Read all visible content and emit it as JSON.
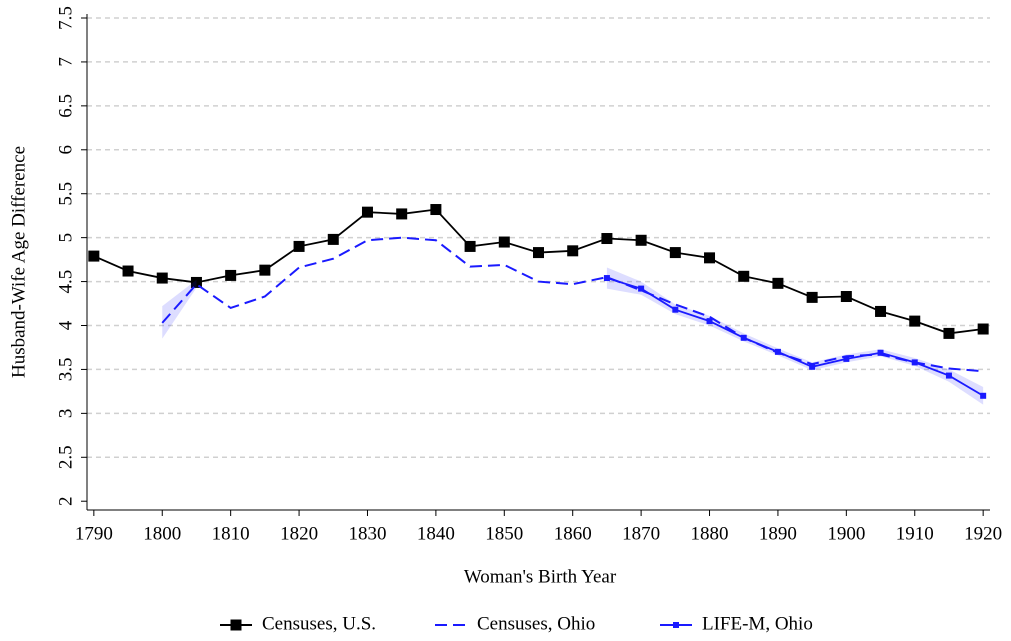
{
  "chart_data": {
    "type": "line",
    "xlabel": "Woman's Birth Year",
    "ylabel": "Husband-Wife Age Difference",
    "x": [
      1790,
      1795,
      1800,
      1805,
      1810,
      1815,
      1820,
      1825,
      1830,
      1835,
      1840,
      1845,
      1850,
      1855,
      1860,
      1865,
      1870,
      1875,
      1880,
      1885,
      1890,
      1895,
      1900,
      1905,
      1910,
      1915,
      1920
    ],
    "xlim": [
      1789,
      1921
    ],
    "xticks": [
      1790,
      1800,
      1810,
      1820,
      1830,
      1840,
      1850,
      1860,
      1870,
      1880,
      1890,
      1900,
      1910,
      1920
    ],
    "ylim": [
      1.9,
      7.5
    ],
    "yticks": [
      2,
      2.5,
      3,
      3.5,
      4,
      4.5,
      5,
      5.5,
      6,
      6.5,
      7,
      7.5
    ],
    "grid": true,
    "legend": "bottom",
    "series": [
      {
        "name": "Censuses, U.S.",
        "color": "#000000",
        "style": "solid-square",
        "values": [
          4.79,
          4.62,
          4.54,
          4.49,
          4.57,
          4.63,
          4.9,
          4.98,
          5.29,
          5.27,
          5.32,
          4.9,
          4.95,
          4.83,
          4.85,
          4.99,
          4.97,
          4.83,
          4.77,
          4.56,
          4.48,
          4.32,
          4.33,
          4.16,
          4.05,
          3.91,
          3.96
        ]
      },
      {
        "name": "Censuses, Ohio",
        "color": "#1a1aff",
        "style": "dashed",
        "values": [
          null,
          null,
          4.03,
          4.47,
          4.2,
          4.33,
          4.66,
          4.76,
          4.97,
          5.0,
          4.97,
          4.67,
          4.69,
          4.5,
          4.47,
          4.55,
          4.4,
          4.24,
          4.1,
          3.86,
          3.69,
          3.56,
          3.65,
          3.67,
          3.58,
          3.51,
          3.48
        ],
        "lower": [
          null,
          null,
          3.85,
          4.43,
          null,
          null,
          null,
          null,
          null,
          null,
          null,
          null,
          null,
          null,
          null,
          null,
          null,
          null,
          null,
          null,
          null,
          null,
          null,
          null,
          null,
          null,
          null
        ],
        "upper": [
          null,
          null,
          4.22,
          4.52,
          null,
          null,
          null,
          null,
          null,
          null,
          null,
          null,
          null,
          null,
          null,
          null,
          null,
          null,
          null,
          null,
          null,
          null,
          null,
          null,
          null,
          null,
          null
        ]
      },
      {
        "name": "LIFE-M, Ohio",
        "color": "#1a1aff",
        "style": "solid-small-square",
        "values": [
          null,
          null,
          null,
          null,
          null,
          null,
          null,
          null,
          null,
          null,
          null,
          null,
          null,
          null,
          null,
          4.54,
          4.42,
          4.18,
          4.05,
          3.86,
          3.7,
          3.53,
          3.62,
          3.69,
          3.58,
          3.43,
          3.2
        ],
        "lower": [
          null,
          null,
          null,
          null,
          null,
          null,
          null,
          null,
          null,
          null,
          null,
          null,
          null,
          null,
          null,
          4.42,
          4.35,
          4.13,
          4.0,
          3.82,
          3.66,
          3.49,
          3.58,
          3.65,
          3.54,
          3.36,
          3.1
        ],
        "upper": [
          null,
          null,
          null,
          null,
          null,
          null,
          null,
          null,
          null,
          null,
          null,
          null,
          null,
          null,
          null,
          4.66,
          4.5,
          4.24,
          4.11,
          3.91,
          3.74,
          3.58,
          3.67,
          3.73,
          3.63,
          3.5,
          3.3
        ]
      }
    ]
  }
}
